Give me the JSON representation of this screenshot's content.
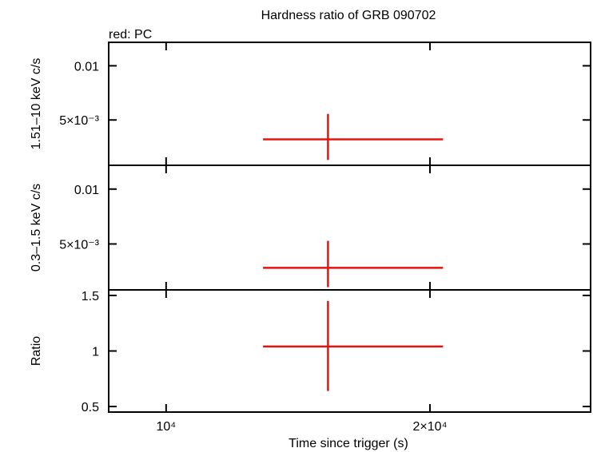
{
  "chart_data": {
    "type": "scatter",
    "title": "Hardness ratio of GRB 090702",
    "subtitle": "red: PC",
    "xlabel": "Time since trigger (s)",
    "x_scale": "log",
    "xlim": [
      8600,
      30500
    ],
    "x_ticks": [
      {
        "value": 10000,
        "label": "10⁴"
      },
      {
        "value": 20000,
        "label": "2×10⁴"
      }
    ],
    "panels": [
      {
        "ylabel": "1.51–10 keV c/s",
        "y_scale": "log",
        "ylim": [
          0.0028,
          0.0135
        ],
        "y_ticks": [
          {
            "value": 0.01,
            "label": "0.01"
          },
          {
            "value": 0.005,
            "label": "5×10⁻³"
          }
        ],
        "points": [
          {
            "x": 15300,
            "x_lo": 12900,
            "x_hi": 20700,
            "y": 0.0039,
            "y_lo": 0.003,
            "y_hi": 0.0054
          }
        ]
      },
      {
        "ylabel": "0.3–1.5 keV c/s",
        "y_scale": "log",
        "ylim": [
          0.0028,
          0.0135
        ],
        "y_ticks": [
          {
            "value": 0.01,
            "label": "0.01"
          },
          {
            "value": 0.005,
            "label": "5×10⁻³"
          }
        ],
        "points": [
          {
            "x": 15300,
            "x_lo": 12900,
            "x_hi": 20700,
            "y": 0.0037,
            "y_lo": 0.0029,
            "y_hi": 0.0052
          }
        ]
      },
      {
        "ylabel": "Ratio",
        "y_scale": "linear",
        "ylim": [
          0.45,
          1.55
        ],
        "y_ticks": [
          {
            "value": 0.5,
            "label": "0.5"
          },
          {
            "value": 1,
            "label": "1"
          },
          {
            "value": 1.5,
            "label": "1.5"
          }
        ],
        "points": [
          {
            "x": 15300,
            "x_lo": 12900,
            "x_hi": 20700,
            "y": 1.04,
            "y_lo": 0.64,
            "y_hi": 1.45
          }
        ]
      }
    ],
    "series_color": "#e8120c",
    "grid": false
  }
}
